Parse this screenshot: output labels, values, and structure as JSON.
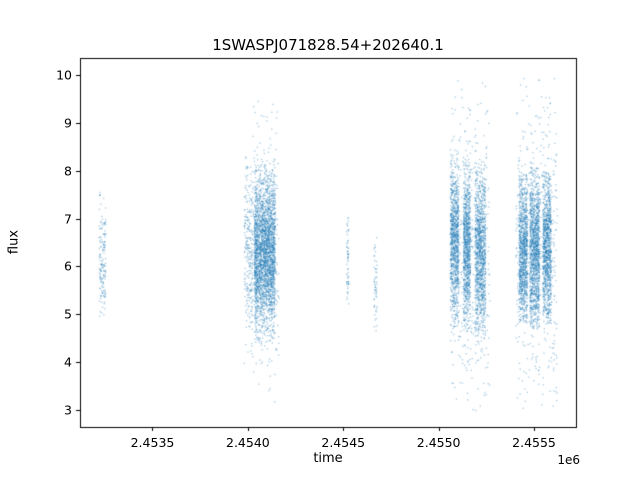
{
  "chart_data": {
    "type": "scatter",
    "title": "1SWASPJ071828.54+202640.1",
    "xlabel": "time",
    "ylabel": "flux",
    "x_offset_label": "1e6",
    "xlim": [
      2453120,
      2455720
    ],
    "ylim": [
      2.65,
      10.35
    ],
    "xticks": [
      2453500,
      2454000,
      2454500,
      2455000,
      2455500
    ],
    "xtick_labels": [
      "2.4535",
      "2.4540",
      "2.4545",
      "2.4550",
      "2.4555"
    ],
    "yticks": [
      3,
      4,
      5,
      6,
      7,
      8,
      9,
      10
    ],
    "ytick_labels": [
      "3",
      "4",
      "5",
      "6",
      "7",
      "8",
      "9",
      "10"
    ],
    "grid": false,
    "legend": null,
    "marker_color": "#1f77b4",
    "marker_alpha": 0.4,
    "marker_size_px": 1.3,
    "clusters": [
      {
        "t": 2453235,
        "dt": 18,
        "n": 160,
        "mu": 6.2,
        "sigma": 0.65,
        "fmin": 4.95,
        "fmax": 7.65
      },
      {
        "t": 2454000,
        "dt": 22,
        "n": 260,
        "mu": 6.3,
        "sigma": 0.9,
        "fmin": 3.9,
        "fmax": 8.4
      },
      {
        "t": 2454085,
        "dt": 55,
        "n": 2600,
        "mu": 6.3,
        "sigma": 0.78,
        "fmin": 4.4,
        "fmax": 8.3
      },
      {
        "t": 2454090,
        "dt": 70,
        "n": 260,
        "mu": 6.3,
        "sigma": 1.7,
        "fmin": 3.15,
        "fmax": 9.55
      },
      {
        "t": 2454520,
        "dt": 6,
        "n": 60,
        "mu": 6.1,
        "sigma": 0.5,
        "fmin": 5.0,
        "fmax": 7.1
      },
      {
        "t": 2454665,
        "dt": 8,
        "n": 55,
        "mu": 5.6,
        "sigma": 0.5,
        "fmin": 4.45,
        "fmax": 6.7
      },
      {
        "t": 2455080,
        "dt": 22,
        "n": 950,
        "mu": 6.5,
        "sigma": 0.85,
        "fmin": 4.7,
        "fmax": 8.45
      },
      {
        "t": 2455145,
        "dt": 18,
        "n": 900,
        "mu": 6.4,
        "sigma": 0.85,
        "fmin": 4.7,
        "fmax": 8.3
      },
      {
        "t": 2455215,
        "dt": 28,
        "n": 1100,
        "mu": 6.3,
        "sigma": 0.9,
        "fmin": 4.5,
        "fmax": 8.2
      },
      {
        "t": 2455160,
        "dt": 105,
        "n": 430,
        "mu": 6.4,
        "sigma": 1.9,
        "fmin": 3.0,
        "fmax": 10.0
      },
      {
        "t": 2455440,
        "dt": 22,
        "n": 1000,
        "mu": 6.3,
        "sigma": 0.8,
        "fmin": 4.8,
        "fmax": 8.0
      },
      {
        "t": 2455500,
        "dt": 25,
        "n": 1200,
        "mu": 6.3,
        "sigma": 0.85,
        "fmin": 4.7,
        "fmax": 8.1
      },
      {
        "t": 2455565,
        "dt": 22,
        "n": 1000,
        "mu": 6.4,
        "sigma": 0.8,
        "fmin": 4.8,
        "fmax": 8.0
      },
      {
        "t": 2455510,
        "dt": 110,
        "n": 460,
        "mu": 6.3,
        "sigma": 1.9,
        "fmin": 3.0,
        "fmax": 10.05
      }
    ]
  }
}
